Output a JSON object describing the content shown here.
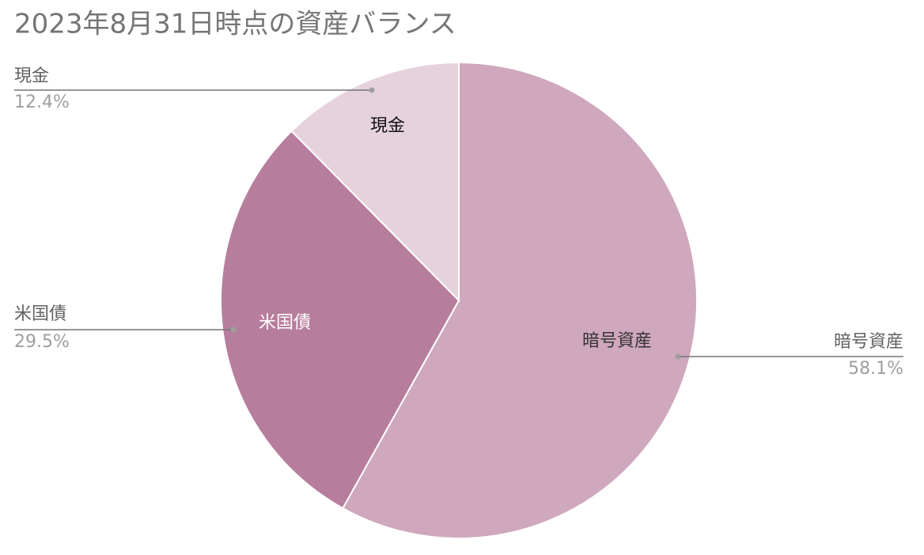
{
  "chart_data": {
    "type": "pie",
    "title": "2023年8月31日時点の資産バランス",
    "categories": [
      "暗号資産",
      "米国債",
      "現金"
    ],
    "values": [
      58.1,
      29.5,
      12.4
    ],
    "value_labels": [
      "58.1%",
      "29.5%",
      "12.4%"
    ],
    "colors": [
      "#cfa8bd",
      "#b77d9c",
      "#e6d2dd"
    ]
  }
}
